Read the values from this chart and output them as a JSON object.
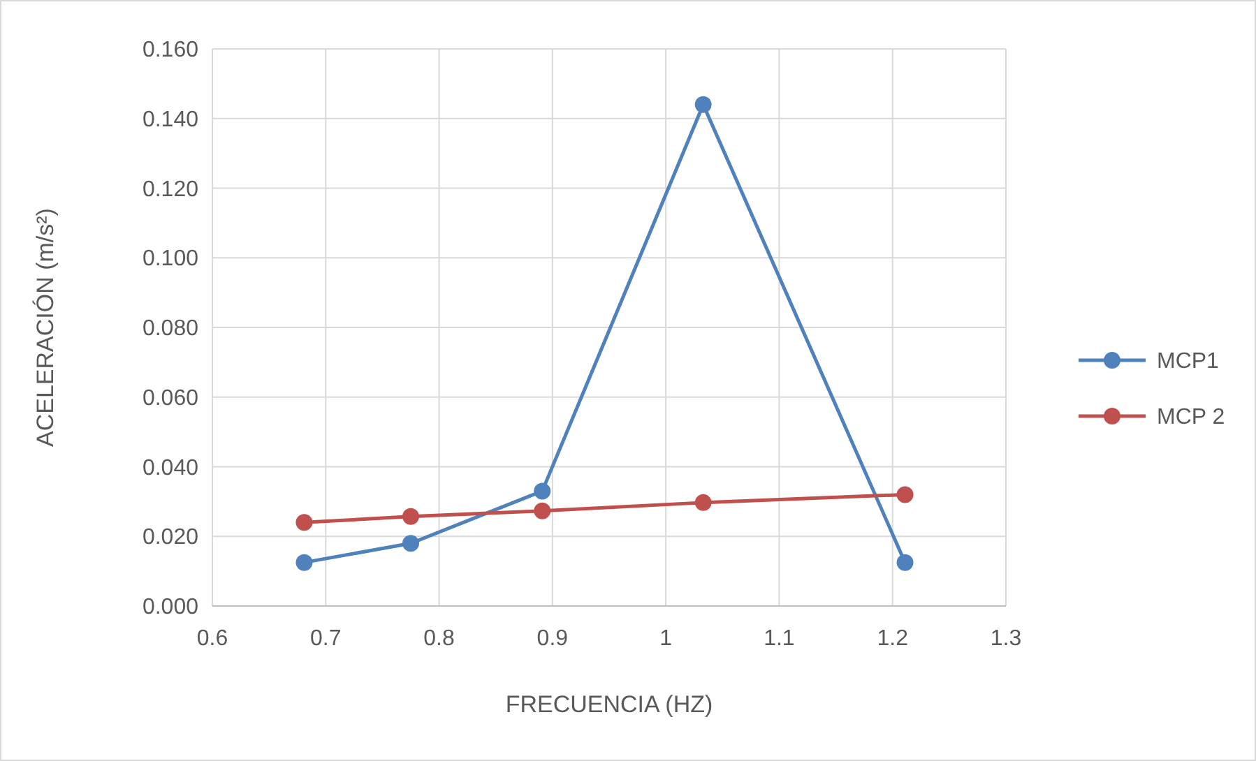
{
  "chart_data": {
    "type": "line",
    "xlabel": "FRECUENCIA (HZ)",
    "ylabel": "ACELERACIÓN (m/s²)",
    "x": [
      0.681,
      0.775,
      0.891,
      1.033,
      1.211
    ],
    "series": [
      {
        "name": "MCP1",
        "color": "#4f81bd",
        "values": [
          0.0125,
          0.018,
          0.033,
          0.144,
          0.0125
        ]
      },
      {
        "name": "MCP 2",
        "color": "#c0504d",
        "values": [
          0.024,
          0.0257,
          0.0273,
          0.0297,
          0.032
        ]
      }
    ],
    "xlim": [
      0.6,
      1.3
    ],
    "xticks": [
      0.6,
      0.7,
      0.8,
      0.9,
      1,
      1.1,
      1.2,
      1.3
    ],
    "ylim": [
      0,
      0.16
    ],
    "yticks": [
      {
        "value": 0,
        "label": "0.000"
      },
      {
        "value": 0.02,
        "label": "0.020"
      },
      {
        "value": 0.04,
        "label": "0.040"
      },
      {
        "value": 0.06,
        "label": "0.060"
      },
      {
        "value": 0.08,
        "label": "0.080"
      },
      {
        "value": 0.1,
        "label": "0.100"
      },
      {
        "value": 0.12,
        "label": "0.120"
      },
      {
        "value": 0.14,
        "label": "0.140"
      },
      {
        "value": 0.16,
        "label": "0.160"
      }
    ],
    "grid": true,
    "legend": "right",
    "marker": "circle",
    "line_style": "solid"
  }
}
